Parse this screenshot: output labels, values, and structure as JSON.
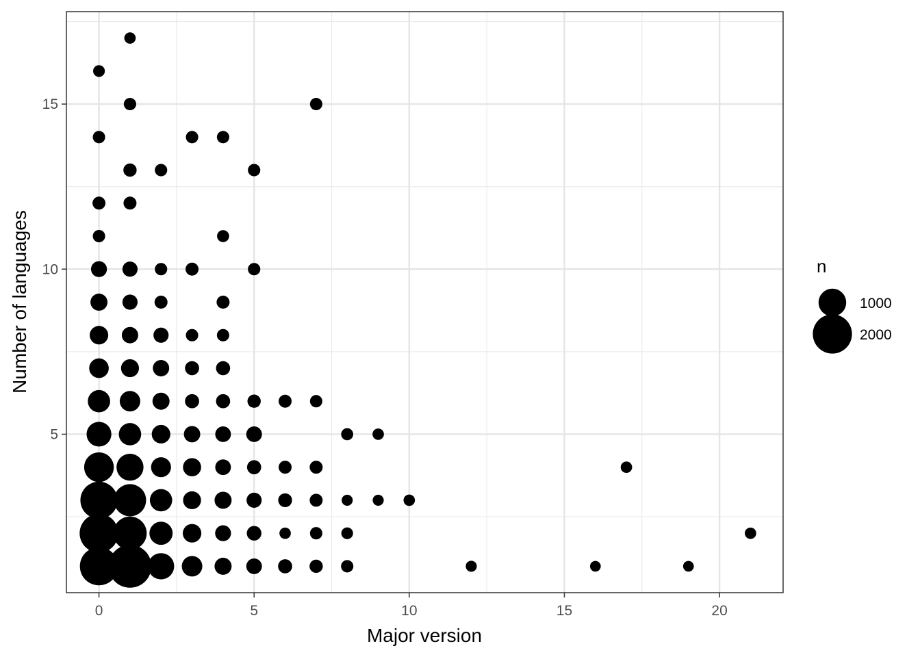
{
  "chart_data": {
    "type": "scatter",
    "xlabel": "Major version",
    "ylabel": "Number of languages",
    "xlim": [
      -1.05,
      22.05
    ],
    "ylim": [
      0.2,
      17.8
    ],
    "x_ticks": [
      0,
      5,
      10,
      15,
      20
    ],
    "y_ticks": [
      5,
      10,
      15
    ],
    "grid": true,
    "size_legend": {
      "title": "n",
      "position": "right",
      "entries": [
        {
          "label": "1000",
          "value": 1000
        },
        {
          "label": "2000",
          "value": 2000
        }
      ]
    },
    "points": [
      {
        "x": 0,
        "y": 1,
        "n": 1900
      },
      {
        "x": 1,
        "y": 1,
        "n": 2400
      },
      {
        "x": 2,
        "y": 1,
        "n": 900
      },
      {
        "x": 3,
        "y": 1,
        "n": 550
      },
      {
        "x": 4,
        "y": 1,
        "n": 380
      },
      {
        "x": 5,
        "y": 1,
        "n": 320
      },
      {
        "x": 6,
        "y": 1,
        "n": 260
      },
      {
        "x": 7,
        "y": 1,
        "n": 230
      },
      {
        "x": 8,
        "y": 1,
        "n": 200
      },
      {
        "x": 12,
        "y": 1,
        "n": 160
      },
      {
        "x": 16,
        "y": 1,
        "n": 150
      },
      {
        "x": 19,
        "y": 1,
        "n": 150
      },
      {
        "x": 0,
        "y": 2,
        "n": 1950
      },
      {
        "x": 1,
        "y": 2,
        "n": 1450
      },
      {
        "x": 2,
        "y": 2,
        "n": 700
      },
      {
        "x": 3,
        "y": 2,
        "n": 450
      },
      {
        "x": 4,
        "y": 2,
        "n": 330
      },
      {
        "x": 5,
        "y": 2,
        "n": 280
      },
      {
        "x": 6,
        "y": 2,
        "n": 170
      },
      {
        "x": 7,
        "y": 2,
        "n": 200
      },
      {
        "x": 8,
        "y": 2,
        "n": 180
      },
      {
        "x": 21,
        "y": 2,
        "n": 170
      },
      {
        "x": 0,
        "y": 3,
        "n": 1800
      },
      {
        "x": 1,
        "y": 3,
        "n": 1350
      },
      {
        "x": 2,
        "y": 3,
        "n": 650
      },
      {
        "x": 3,
        "y": 3,
        "n": 420
      },
      {
        "x": 4,
        "y": 3,
        "n": 380
      },
      {
        "x": 5,
        "y": 3,
        "n": 300
      },
      {
        "x": 6,
        "y": 3,
        "n": 250
      },
      {
        "x": 7,
        "y": 3,
        "n": 220
      },
      {
        "x": 8,
        "y": 3,
        "n": 160
      },
      {
        "x": 9,
        "y": 3,
        "n": 160
      },
      {
        "x": 10,
        "y": 3,
        "n": 170
      },
      {
        "x": 0,
        "y": 4,
        "n": 1150
      },
      {
        "x": 1,
        "y": 4,
        "n": 950
      },
      {
        "x": 2,
        "y": 4,
        "n": 520
      },
      {
        "x": 3,
        "y": 4,
        "n": 430
      },
      {
        "x": 4,
        "y": 4,
        "n": 320
      },
      {
        "x": 5,
        "y": 4,
        "n": 260
      },
      {
        "x": 6,
        "y": 4,
        "n": 220
      },
      {
        "x": 7,
        "y": 4,
        "n": 220
      },
      {
        "x": 17,
        "y": 4,
        "n": 170
      },
      {
        "x": 0,
        "y": 5,
        "n": 800
      },
      {
        "x": 1,
        "y": 5,
        "n": 650
      },
      {
        "x": 2,
        "y": 5,
        "n": 450
      },
      {
        "x": 3,
        "y": 5,
        "n": 350
      },
      {
        "x": 4,
        "y": 5,
        "n": 320
      },
      {
        "x": 5,
        "y": 5,
        "n": 320
      },
      {
        "x": 8,
        "y": 5,
        "n": 190
      },
      {
        "x": 9,
        "y": 5,
        "n": 170
      },
      {
        "x": 0,
        "y": 6,
        "n": 650
      },
      {
        "x": 1,
        "y": 6,
        "n": 550
      },
      {
        "x": 2,
        "y": 6,
        "n": 380
      },
      {
        "x": 3,
        "y": 6,
        "n": 260
      },
      {
        "x": 4,
        "y": 6,
        "n": 260
      },
      {
        "x": 5,
        "y": 6,
        "n": 230
      },
      {
        "x": 6,
        "y": 6,
        "n": 220
      },
      {
        "x": 7,
        "y": 6,
        "n": 200
      },
      {
        "x": 0,
        "y": 7,
        "n": 500
      },
      {
        "x": 1,
        "y": 7,
        "n": 420
      },
      {
        "x": 2,
        "y": 7,
        "n": 350
      },
      {
        "x": 3,
        "y": 7,
        "n": 260
      },
      {
        "x": 4,
        "y": 7,
        "n": 260
      },
      {
        "x": 0,
        "y": 8,
        "n": 450
      },
      {
        "x": 1,
        "y": 8,
        "n": 350
      },
      {
        "x": 2,
        "y": 8,
        "n": 300
      },
      {
        "x": 3,
        "y": 8,
        "n": 200
      },
      {
        "x": 4,
        "y": 8,
        "n": 200
      },
      {
        "x": 0,
        "y": 9,
        "n": 380
      },
      {
        "x": 1,
        "y": 9,
        "n": 300
      },
      {
        "x": 2,
        "y": 9,
        "n": 220
      },
      {
        "x": 4,
        "y": 9,
        "n": 220
      },
      {
        "x": 0,
        "y": 10,
        "n": 330
      },
      {
        "x": 1,
        "y": 10,
        "n": 300
      },
      {
        "x": 2,
        "y": 10,
        "n": 200
      },
      {
        "x": 3,
        "y": 10,
        "n": 220
      },
      {
        "x": 5,
        "y": 10,
        "n": 200
      },
      {
        "x": 0,
        "y": 11,
        "n": 200
      },
      {
        "x": 4,
        "y": 11,
        "n": 190
      },
      {
        "x": 0,
        "y": 12,
        "n": 220
      },
      {
        "x": 1,
        "y": 12,
        "n": 220
      },
      {
        "x": 1,
        "y": 13,
        "n": 230
      },
      {
        "x": 2,
        "y": 13,
        "n": 200
      },
      {
        "x": 5,
        "y": 13,
        "n": 200
      },
      {
        "x": 0,
        "y": 14,
        "n": 200
      },
      {
        "x": 3,
        "y": 14,
        "n": 200
      },
      {
        "x": 4,
        "y": 14,
        "n": 200
      },
      {
        "x": 1,
        "y": 15,
        "n": 200
      },
      {
        "x": 7,
        "y": 15,
        "n": 200
      },
      {
        "x": 0,
        "y": 16,
        "n": 180
      },
      {
        "x": 1,
        "y": 17,
        "n": 170
      }
    ]
  }
}
